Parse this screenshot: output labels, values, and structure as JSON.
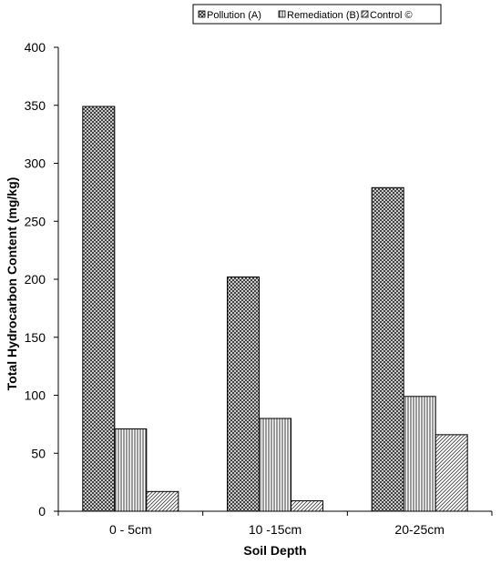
{
  "chart_data": {
    "type": "bar",
    "categories": [
      "0 - 5cm",
      "10 -15cm",
      "20-25cm"
    ],
    "series": [
      {
        "name": "Pollution  (A)",
        "values": [
          349,
          202,
          279
        ],
        "pattern": "crosshatch"
      },
      {
        "name": "Remediation  (B)",
        "values": [
          71,
          80,
          99
        ],
        "pattern": "vertical-lines"
      },
      {
        "name": "Control ©",
        "values": [
          17,
          9,
          66
        ],
        "pattern": "diagonal-lines"
      }
    ],
    "title": "",
    "xlabel": "Soil Depth",
    "ylabel": "Total Hydrocarbon Content (mg/kg)",
    "ylim": [
      0,
      400
    ],
    "yticks": [
      0,
      50,
      100,
      150,
      200,
      250,
      300,
      350,
      400
    ],
    "grid": false,
    "legend_position": "top-right"
  }
}
